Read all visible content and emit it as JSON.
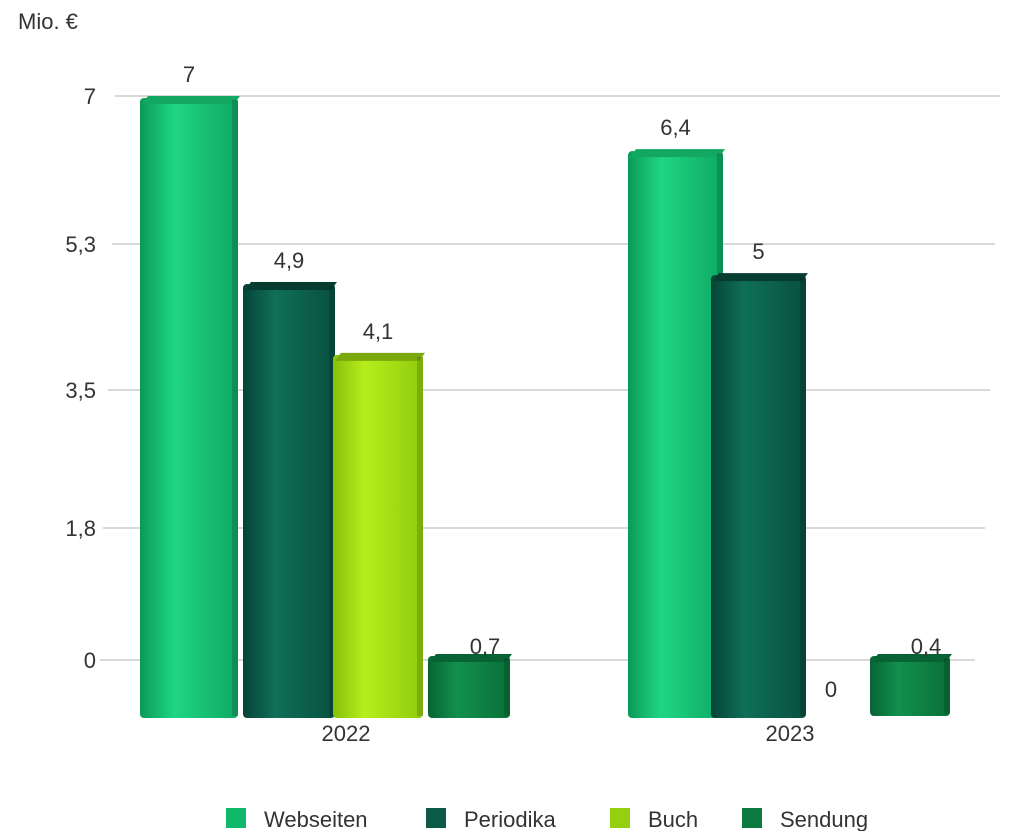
{
  "chart_data": {
    "type": "bar",
    "unit_label": "Mio. €",
    "categories": [
      "2022",
      "2023"
    ],
    "y_ticks": [
      "0",
      "1,8",
      "3,5",
      "5,3",
      "7"
    ],
    "ylim": [
      0,
      7
    ],
    "grid": true,
    "legend_position": "bottom",
    "series": [
      {
        "name": "Webseiten",
        "color": "#10b869",
        "values": [
          7,
          6.4
        ],
        "labels": [
          "7",
          "6,4"
        ]
      },
      {
        "name": "Periodika",
        "color": "#0b5a47",
        "values": [
          4.9,
          5
        ],
        "labels": [
          "4,9",
          "5"
        ]
      },
      {
        "name": "Buch",
        "color": "#94cf10",
        "values": [
          4.1,
          0
        ],
        "labels": [
          "4,1",
          "0"
        ]
      },
      {
        "name": "Sendung",
        "color": "#0c7a3f",
        "values": [
          0.7,
          0.4
        ],
        "labels": [
          "0,7",
          "0,4"
        ]
      }
    ]
  }
}
